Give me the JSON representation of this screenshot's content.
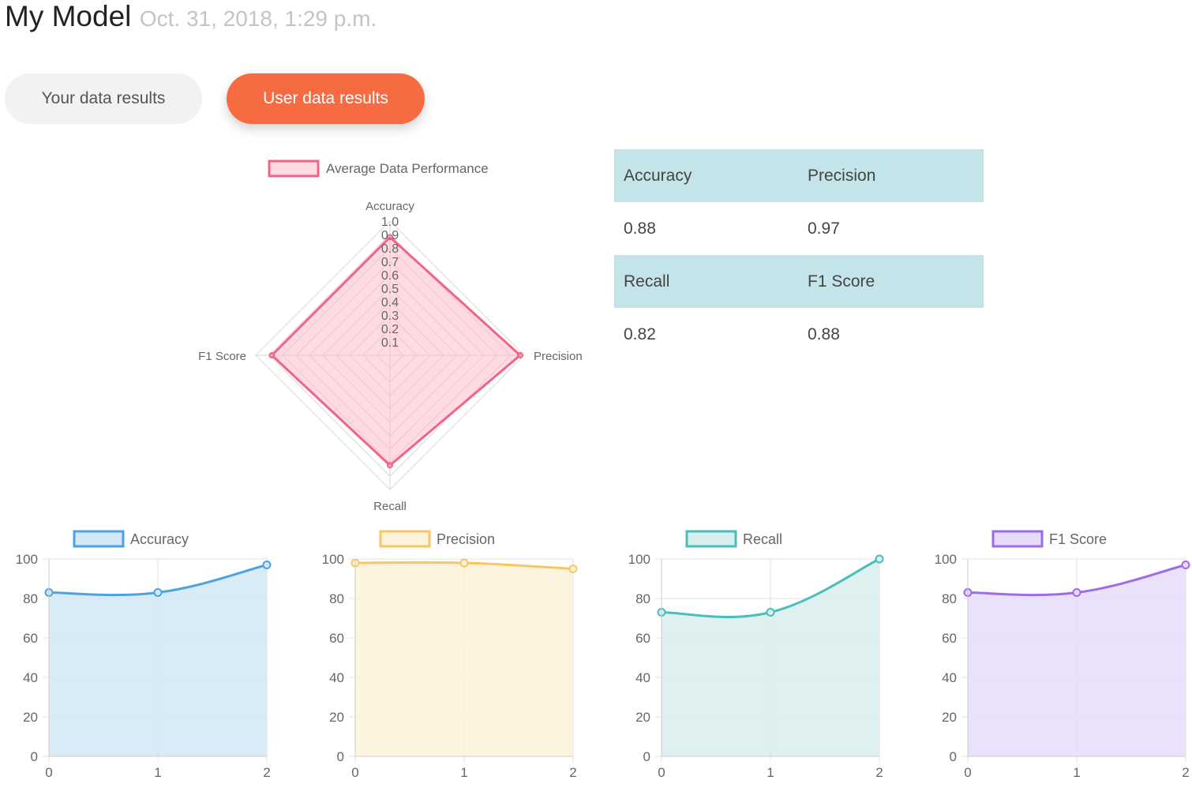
{
  "header": {
    "title": "My Model",
    "date": "Oct. 31, 2018, 1:29 p.m."
  },
  "tabs": {
    "your_data": "Your data results",
    "user_data": "User data results"
  },
  "colors": {
    "accent": "#f76b43",
    "table_header": "#c3e5ea"
  },
  "metrics_table": {
    "rows": [
      {
        "type": "header",
        "cells": [
          "Accuracy",
          "Precision"
        ]
      },
      {
        "type": "value",
        "cells": [
          "0.88",
          "0.97"
        ]
      },
      {
        "type": "header",
        "cells": [
          "Recall",
          "F1 Score"
        ]
      },
      {
        "type": "value",
        "cells": [
          "0.82",
          "0.88"
        ]
      }
    ]
  },
  "chart_data": [
    {
      "type": "radar",
      "legend": "Average Data Performance",
      "axes": [
        "Accuracy",
        "Precision",
        "Recall",
        "F1 Score"
      ],
      "values": [
        0.88,
        0.97,
        0.82,
        0.88
      ],
      "range": [
        0,
        1.0
      ],
      "ticks": [
        "0.1",
        "0.2",
        "0.3",
        "0.4",
        "0.5",
        "0.6",
        "0.7",
        "0.8",
        "0.9",
        "1.0"
      ],
      "color": "#ef6585",
      "fill": "rgba(255,182,198,0.5)",
      "grid": true
    },
    {
      "type": "area",
      "legend": "Accuracy",
      "x": [
        0,
        1,
        2
      ],
      "values": [
        83,
        83,
        97
      ],
      "ylim": [
        0,
        100
      ],
      "yticks": [
        "0",
        "20",
        "40",
        "60",
        "80",
        "100"
      ],
      "xticks": [
        "0",
        "1",
        "2"
      ],
      "color": "#4da3e0",
      "fill": "#d3e8f7",
      "grid": true
    },
    {
      "type": "area",
      "legend": "Precision",
      "x": [
        0,
        1,
        2
      ],
      "values": [
        98,
        98,
        95
      ],
      "ylim": [
        0,
        100
      ],
      "yticks": [
        "0",
        "20",
        "40",
        "60",
        "80",
        "100"
      ],
      "xticks": [
        "0",
        "1",
        "2"
      ],
      "color": "#f8c664",
      "fill": "#fdf2da",
      "grid": true
    },
    {
      "type": "area",
      "legend": "Recall",
      "x": [
        0,
        1,
        2
      ],
      "values": [
        73,
        73,
        100
      ],
      "ylim": [
        0,
        100
      ],
      "yticks": [
        "0",
        "20",
        "40",
        "60",
        "80",
        "100"
      ],
      "xticks": [
        "0",
        "1",
        "2"
      ],
      "color": "#4bbdbb",
      "fill": "#d8efed",
      "grid": true
    },
    {
      "type": "area",
      "legend": "F1 Score",
      "x": [
        0,
        1,
        2
      ],
      "values": [
        83,
        83,
        97
      ],
      "ylim": [
        0,
        100
      ],
      "yticks": [
        "0",
        "20",
        "40",
        "60",
        "80",
        "100"
      ],
      "xticks": [
        "0",
        "1",
        "2"
      ],
      "color": "#9e6bea",
      "fill": "#e6dcf9",
      "grid": true
    }
  ]
}
